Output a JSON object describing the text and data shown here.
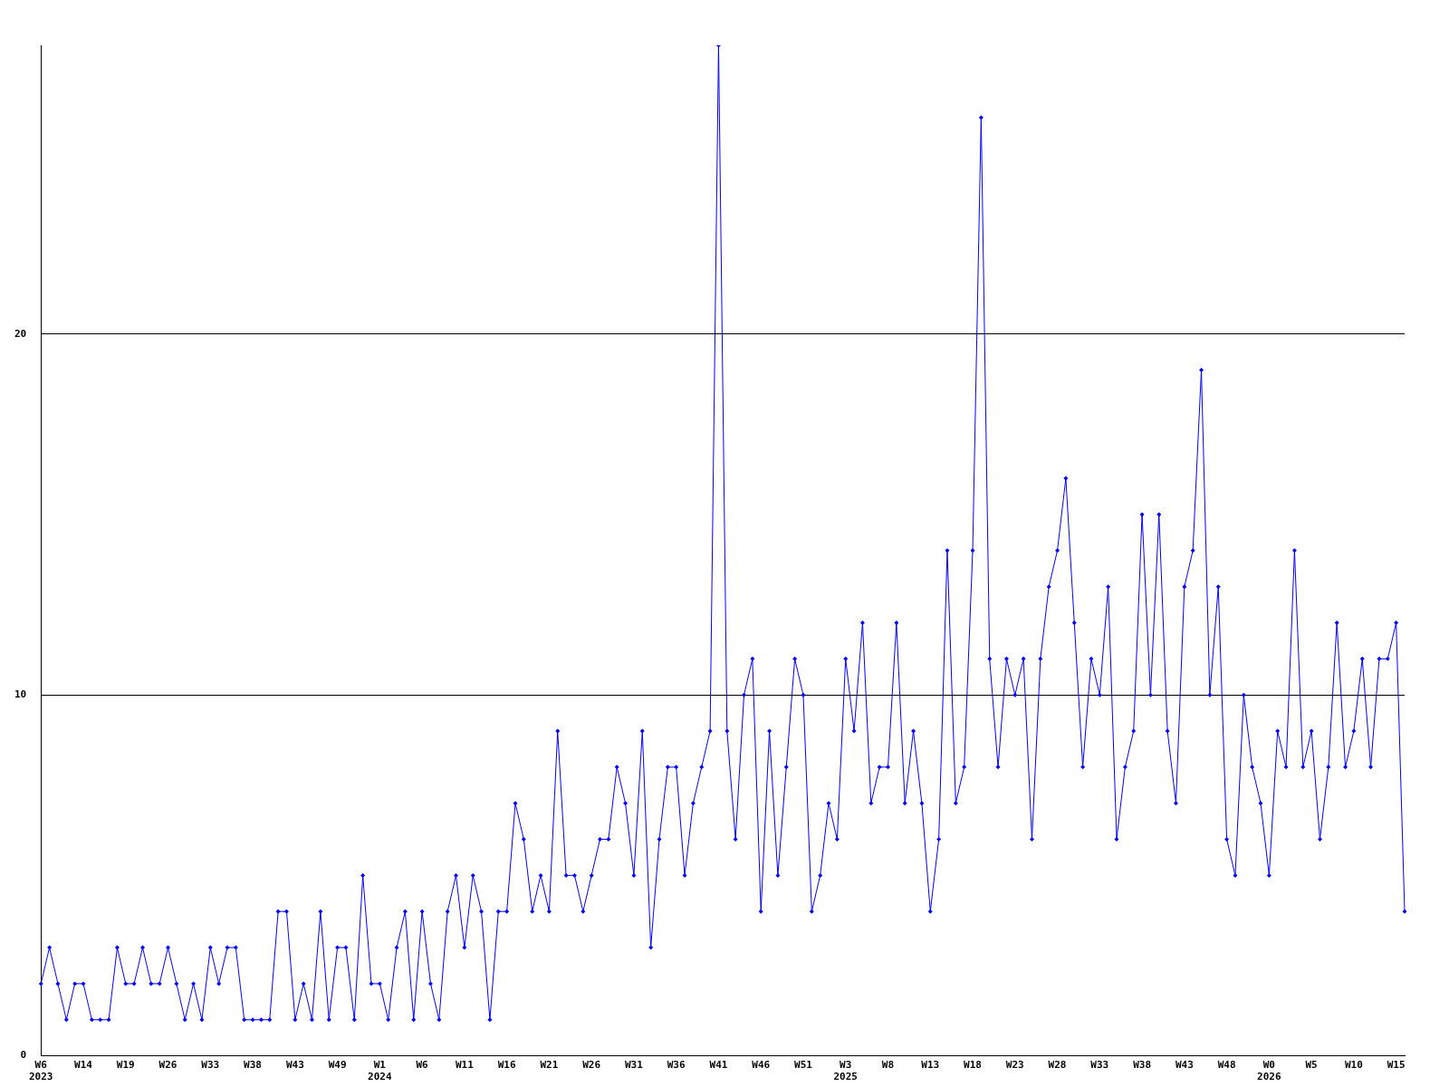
{
  "chart_data": {
    "type": "line",
    "categories": [
      "W6\n2023",
      null,
      null,
      null,
      null,
      "W14",
      null,
      null,
      null,
      null,
      "W19",
      null,
      null,
      null,
      null,
      "W26",
      null,
      null,
      null,
      null,
      "W33",
      null,
      null,
      null,
      null,
      "W38",
      null,
      null,
      null,
      null,
      "W43",
      null,
      null,
      null,
      null,
      "W49",
      null,
      null,
      null,
      null,
      "W1\n2024",
      null,
      null,
      null,
      null,
      "W6",
      null,
      null,
      null,
      null,
      "W11",
      null,
      null,
      null,
      null,
      "W16",
      null,
      null,
      null,
      null,
      "W21",
      null,
      null,
      null,
      null,
      "W26",
      null,
      null,
      null,
      null,
      "W31",
      null,
      null,
      null,
      null,
      "W36",
      null,
      null,
      null,
      null,
      "W41",
      null,
      null,
      null,
      null,
      "W46",
      null,
      null,
      null,
      null,
      "W51",
      null,
      null,
      null,
      null,
      "W3\n2025",
      null,
      null,
      null,
      null,
      "W8",
      null,
      null,
      null,
      null,
      "W13",
      null,
      null,
      null,
      null,
      "W18",
      null,
      null,
      null,
      null,
      "W23",
      null,
      null,
      null,
      null,
      "W28",
      null,
      null,
      null,
      null,
      "W33",
      null,
      null,
      null,
      null,
      "W38",
      null,
      null,
      null,
      null,
      "W43",
      null,
      null,
      null,
      null,
      "W48",
      null,
      null,
      null,
      null,
      "W0\n2026",
      null,
      null,
      null,
      null,
      "W5",
      null,
      null,
      null,
      null,
      "W10",
      null,
      null,
      null,
      null,
      "W15",
      null
    ],
    "series": [
      {
        "color": "#0000ff",
        "values": [
          2,
          3,
          2,
          1,
          2,
          2,
          1,
          1,
          1,
          3,
          2,
          2,
          3,
          2,
          2,
          3,
          2,
          1,
          2,
          1,
          3,
          2,
          3,
          3,
          1,
          1,
          1,
          1,
          4,
          4,
          1,
          2,
          1,
          4,
          1,
          3,
          3,
          1,
          5,
          2,
          2,
          1,
          3,
          4,
          1,
          4,
          2,
          1,
          4,
          5,
          3,
          5,
          4,
          1,
          4,
          4,
          7,
          6,
          4,
          5,
          4,
          9,
          5,
          5,
          4,
          5,
          6,
          6,
          8,
          7,
          5,
          9,
          3,
          6,
          8,
          8,
          5,
          7,
          8,
          9,
          28,
          9,
          6,
          10,
          11,
          4,
          9,
          5,
          8,
          11,
          10,
          4,
          5,
          7,
          6,
          11,
          9,
          12,
          7,
          8,
          8,
          12,
          7,
          9,
          7,
          4,
          6,
          14,
          7,
          8,
          14,
          26,
          11,
          8,
          11,
          10,
          11,
          6,
          11,
          13,
          14,
          16,
          12,
          8,
          11,
          10,
          13,
          6,
          8,
          9,
          15,
          10,
          15,
          9,
          7,
          13,
          14,
          19,
          10,
          13,
          6,
          5,
          10,
          8,
          7,
          5,
          9,
          8,
          14,
          8,
          9,
          6,
          8,
          12,
          8,
          9,
          11,
          8,
          11,
          11,
          12,
          4
        ]
      }
    ],
    "ylim": [
      0,
      28
    ],
    "yticks": [
      0,
      10,
      20
    ],
    "grid": "y",
    "marker": "diamond",
    "line_style": "solid",
    "legend": false
  }
}
